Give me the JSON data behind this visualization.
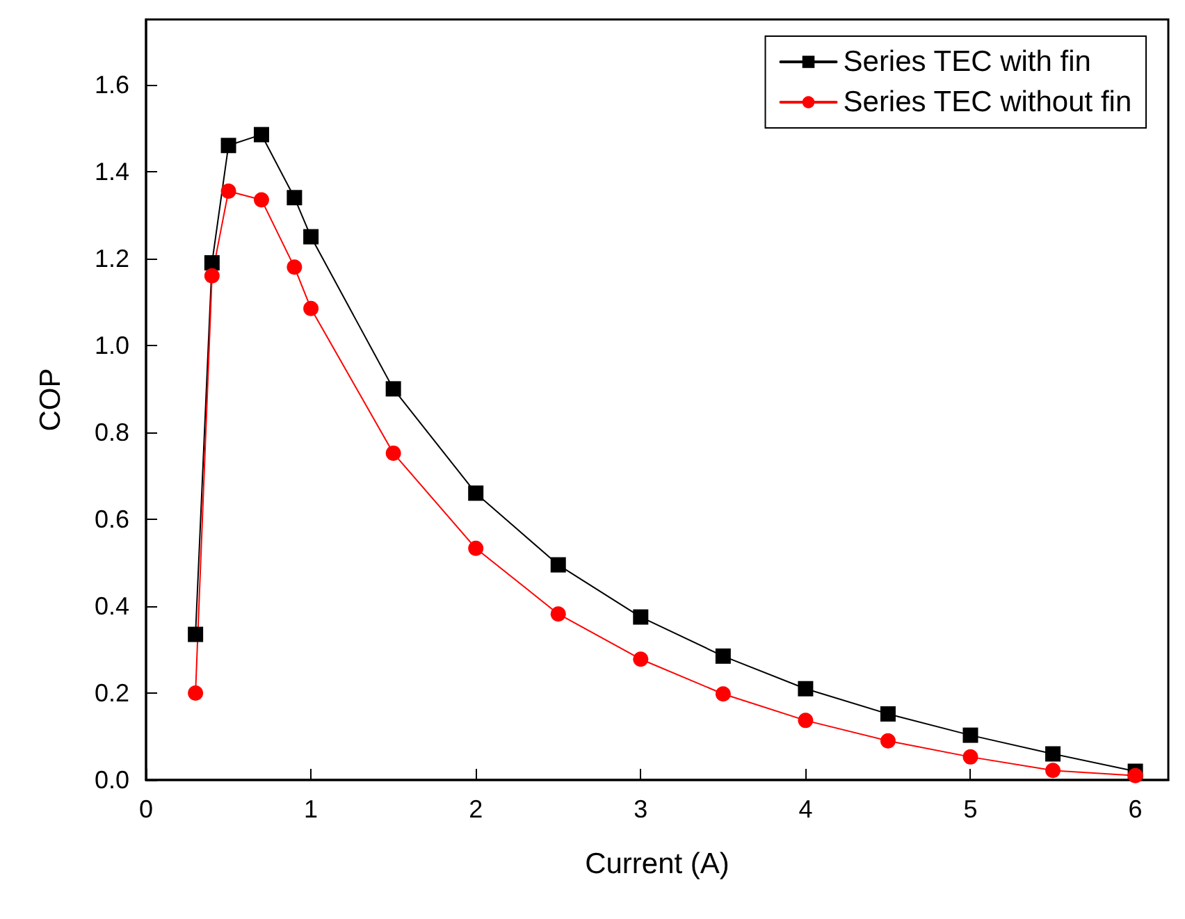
{
  "chart_data": {
    "type": "line",
    "xlabel": "Current (A)",
    "ylabel": "COP",
    "xlim": [
      0,
      6.2
    ],
    "xticks": [
      0,
      1,
      2,
      3,
      4,
      5,
      6
    ],
    "ylim": [
      0,
      1.75
    ],
    "yticks": [
      {
        "value": 0,
        "label": "0.0"
      },
      {
        "value": 0.2,
        "label": "0.2"
      },
      {
        "value": 0.4,
        "label": "0.4"
      },
      {
        "value": 0.6,
        "label": "0.6"
      },
      {
        "value": 0.8,
        "label": "0.8"
      },
      {
        "value": 1,
        "label": "1.0"
      },
      {
        "value": 1.2,
        "label": "1.2"
      },
      {
        "value": 1.4,
        "label": "1.4"
      },
      {
        "value": 1.6,
        "label": "1.6"
      }
    ],
    "x": [
      0.3,
      0.4,
      0.5,
      0.7,
      0.9,
      1.0,
      1.5,
      2,
      2.5,
      3,
      3.5,
      4,
      4.5,
      5,
      5.5,
      6
    ],
    "grid": false,
    "legend": "top right",
    "line_style": "solid",
    "series": [
      {
        "name": "Series TEC with fin",
        "color": "#000000",
        "marker": "square",
        "values": [
          0.335,
          1.19,
          1.46,
          1.485,
          1.34,
          1.25,
          0.9,
          0.66,
          0.495,
          0.375,
          0.285,
          0.21,
          0.152,
          0.103,
          0.06,
          0.02
        ]
      },
      {
        "name": "Series TEC without fin",
        "color": "#ff0000",
        "marker": "circle",
        "values": [
          0.2,
          1.16,
          1.355,
          1.335,
          1.18,
          1.085,
          0.752,
          0.533,
          0.382,
          0.278,
          0.198,
          0.137,
          0.09,
          0.053,
          0.022,
          0.01
        ]
      }
    ]
  }
}
